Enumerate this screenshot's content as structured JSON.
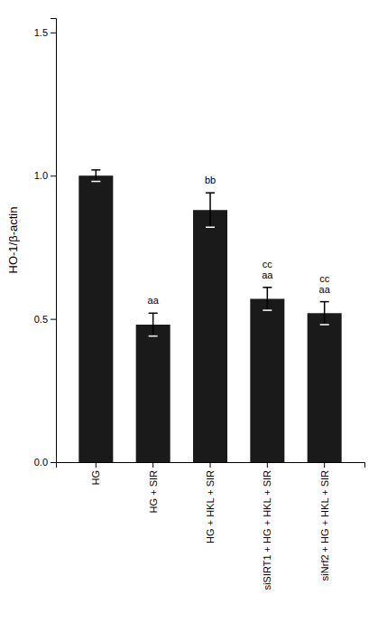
{
  "chart_data": {
    "type": "bar",
    "categories": [
      "HG",
      "HG + SIR",
      "HG + HKL + SIR",
      "siSIRT1 + HG + HKL + SIR",
      "siNrf2 + HG + HKL + SIR"
    ],
    "values": [
      1.0,
      0.48,
      0.88,
      0.57,
      0.52
    ],
    "errors": [
      0.02,
      0.04,
      0.06,
      0.04,
      0.04
    ],
    "color": "#1a1a1a",
    "ylabel": "HO-1/β-actin",
    "ylim": [
      0.0,
      1.55
    ],
    "yticks": [
      {
        "value": 0.0,
        "label": "0.0"
      },
      0.5,
      {
        "value": 1.0,
        "label": "1.0"
      },
      1.5
    ],
    "annotations": [
      {
        "text": "aa",
        "category": "HG + SIR",
        "y": 0.545
      },
      {
        "text": "bb",
        "category": "HG + HKL + SIR",
        "y": 0.965
      },
      {
        "text": "cc\naa",
        "category": "siSIRT1 + HG + HKL + SIR",
        "y": 0.635
      },
      {
        "text": "cc\naa",
        "category": "siNrf2 + HG + HKL + SIR",
        "y": 0.585
      }
    ]
  }
}
